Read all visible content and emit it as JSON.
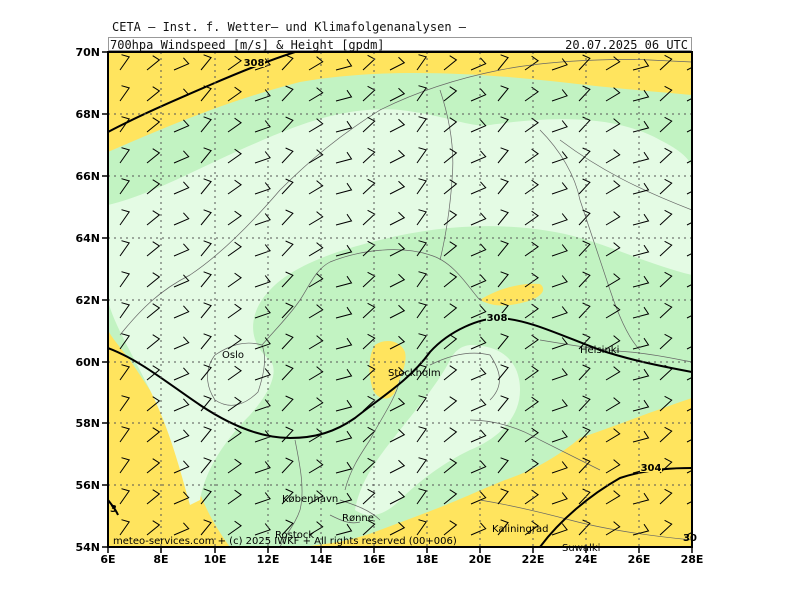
{
  "header": {
    "line1": "CETA – Inst. f. Wetter– und Klimafolgenanalysen –",
    "line2": "700hpa_Windspeed_[m/s]_&_Height_[gpdm]",
    "datetime": "20.07.2025 06 UTC"
  },
  "axes": {
    "lat_labels": [
      "70N",
      "68N",
      "66N",
      "64N",
      "62N",
      "60N",
      "58N",
      "56N",
      "54N"
    ],
    "lon_labels": [
      "6E",
      "8E",
      "10E",
      "12E",
      "14E",
      "16E",
      "18E",
      "20E",
      "22E",
      "24E",
      "26E",
      "28E"
    ]
  },
  "contours": {
    "c1": "308",
    "c2": "308",
    "c3": "304",
    "c4": "3",
    "c5": "30"
  },
  "cities": {
    "oslo": "Oslo",
    "stockholm": "Stockholm",
    "helsinki": "Helsinki",
    "kobenhavn": "København",
    "ronne": "Rønne",
    "rostock": "Rostock",
    "kaliningrad": "Kaliningrad",
    "suwalki": "Suwałki"
  },
  "footer": {
    "copyright": "meteo-services.com + (c) 2025 IWKF + All rights reserved (00+006)"
  },
  "colors": {
    "yellow": "#ffe45e",
    "green_mid": "#c2f3c2",
    "green_light": "#e4fbe4"
  }
}
